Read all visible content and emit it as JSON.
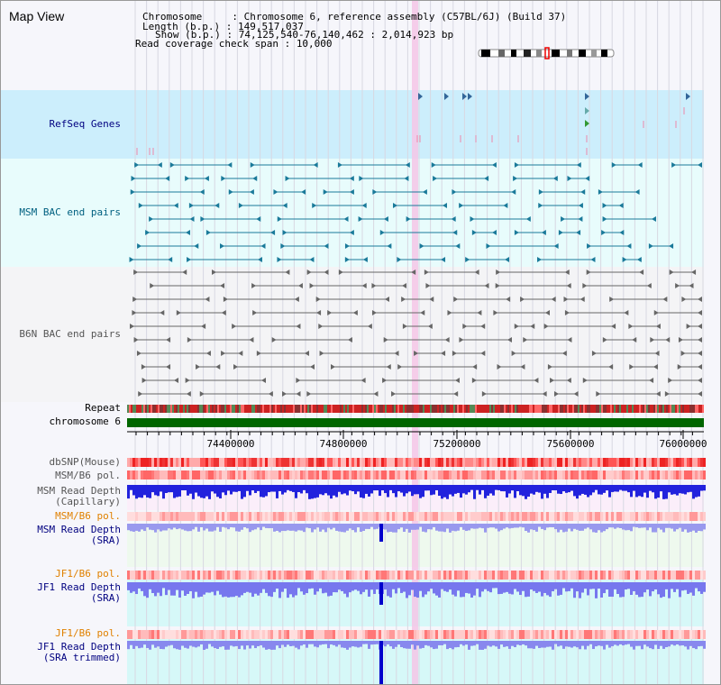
{
  "title": "Map View",
  "info": {
    "chromosome_label": "Chromosome     : ",
    "chromosome_value": "Chromosome 6, reference assembly (C57BL/6J) (Build 37)",
    "length_label": "Length (b.p.) : ",
    "length_value": "149,517,037",
    "show_label": "Show (b.p.) : ",
    "show_value": "74,125,540-76,140,462 : 2,014,923 bp",
    "coverage_label": "Read coverage check span : ",
    "coverage_value": "10,000"
  },
  "tracks": {
    "refseq": "RefSeq Genes",
    "msm_bac": "MSM BAC end pairs",
    "b6n_bac": "B6N BAC end pairs",
    "repeat": "Repeat",
    "chromosome": "chromosome 6",
    "dbsnp": "dbSNP(Mouse)",
    "msm_b6_pol_1": "MSM/B6 pol.",
    "msm_read_depth_cap_1": "MSM Read Depth",
    "msm_read_depth_cap_2": "(Capillary)",
    "msm_b6_pol_2": "MSM/B6 pol.",
    "msm_read_depth_sra_1": "MSM Read Depth",
    "msm_read_depth_sra_2": "(SRA)",
    "jf1_b6_pol_1": "JF1/B6 pol.",
    "jf1_read_depth_sra_1": "JF1 Read Depth",
    "jf1_read_depth_sra_2": "(SRA)",
    "jf1_b6_pol_2": "JF1/B6 pol.",
    "jf1_read_depth_trim_1": "JF1 Read Depth",
    "jf1_read_depth_trim_2": "(SRA trimmed)"
  },
  "axis_ticks": [
    "74400000",
    "74800000",
    "75200000",
    "75600000",
    "76000000"
  ],
  "colors": {
    "refseq_label": "#000080",
    "msm_label": "#006080",
    "b6n_label": "#555555",
    "jf1_pol_label": "#e08000",
    "read_depth_label": "#000080",
    "chromosome_bar": "#006600",
    "highlight": "#f4c6e6"
  }
}
